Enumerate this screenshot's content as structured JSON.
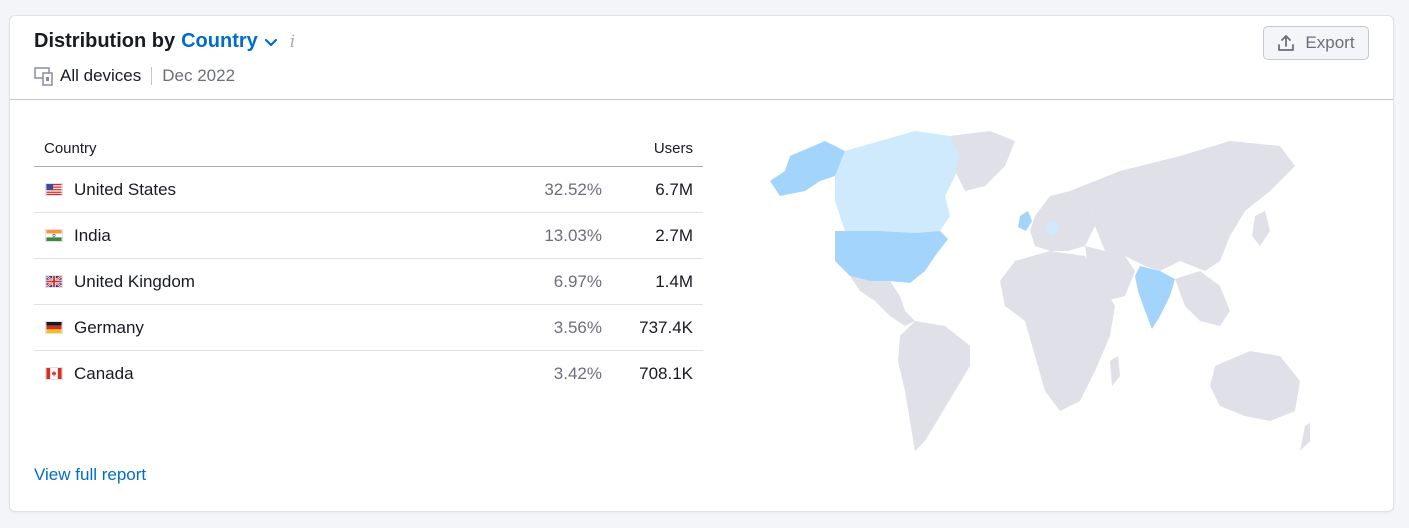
{
  "header": {
    "title_prefix": "Distribution by",
    "title_dimension": "Country",
    "info_glyph": "i",
    "device_label": "All devices",
    "period": "Dec 2022",
    "export_label": "Export"
  },
  "table": {
    "columns": {
      "country": "Country",
      "users": "Users"
    },
    "rows": [
      {
        "country": "United States",
        "share": "32.52%",
        "users": "6.7M",
        "flag": "us-flag-icon"
      },
      {
        "country": "India",
        "share": "13.03%",
        "users": "2.7M",
        "flag": "in-flag-icon"
      },
      {
        "country": "United Kingdom",
        "share": "6.97%",
        "users": "1.4M",
        "flag": "gb-flag-icon"
      },
      {
        "country": "Germany",
        "share": "3.56%",
        "users": "737.4K",
        "flag": "de-flag-icon"
      },
      {
        "country": "Canada",
        "share": "3.42%",
        "users": "708.1K",
        "flag": "ca-flag-icon"
      }
    ]
  },
  "footer": {
    "link_label": "View full report"
  },
  "colors": {
    "accent": "#006dca",
    "map_base": "#dfe0e8",
    "map_high": "#a3d4fb",
    "map_mid": "#cfe9fd"
  }
}
